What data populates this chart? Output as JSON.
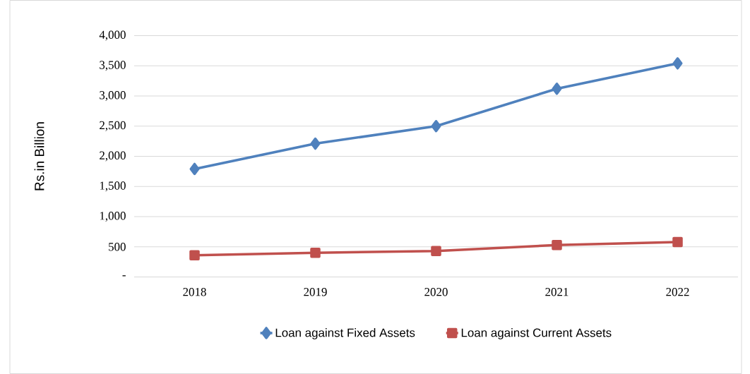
{
  "chart_data": {
    "type": "line",
    "ylabel": "Rs.in Billion",
    "categories": [
      "2018",
      "2019",
      "2020",
      "2021",
      "2022"
    ],
    "series": [
      {
        "name": "Loan against Fixed Assets",
        "color": "#4f81bd",
        "marker": "diamond",
        "values": [
          1790,
          2210,
          2500,
          3120,
          3540
        ]
      },
      {
        "name": "Loan against Current Assets",
        "color": "#c0504d",
        "marker": "square",
        "values": [
          360,
          400,
          430,
          530,
          580
        ]
      }
    ],
    "ylim": [
      0,
      4000
    ],
    "yticks": [
      {
        "value": 0,
        "label": "-"
      },
      {
        "value": 500,
        "label": "500"
      },
      {
        "value": 1000,
        "label": "1,000"
      },
      {
        "value": 1500,
        "label": "1,500"
      },
      {
        "value": 2000,
        "label": "2,000"
      },
      {
        "value": 2500,
        "label": "2,500"
      },
      {
        "value": 3000,
        "label": "3,000"
      },
      {
        "value": 3500,
        "label": "3,500"
      },
      {
        "value": 4000,
        "label": "4,000"
      }
    ],
    "grid": "y",
    "legend": "bottom",
    "line_style": "solid"
  }
}
